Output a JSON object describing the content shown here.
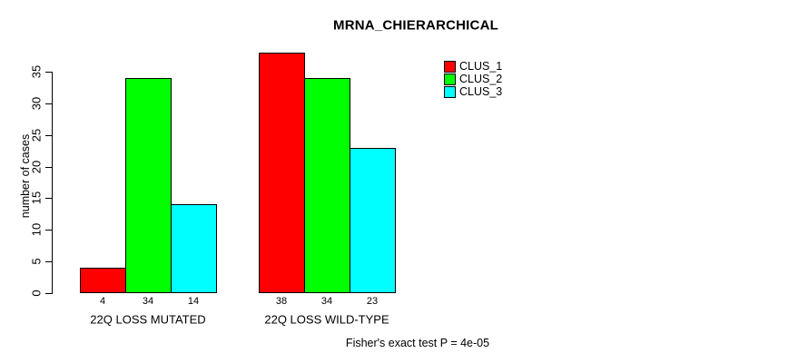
{
  "chart_data": {
    "type": "bar",
    "title": "MRNA_CHIERARCHICAL",
    "ylabel": "number of cases",
    "xlabel": "",
    "categories": [
      "22Q LOSS MUTATED",
      "22Q LOSS WILD-TYPE"
    ],
    "series": [
      {
        "name": "CLUS_1",
        "color": "#ff0000",
        "values": [
          4,
          38
        ]
      },
      {
        "name": "CLUS_2",
        "color": "#00ff00",
        "values": [
          34,
          34
        ]
      },
      {
        "name": "CLUS_3",
        "color": "#00ffff",
        "values": [
          14,
          23
        ]
      }
    ],
    "bar_value_labels": [
      [
        4,
        34,
        14
      ],
      [
        38,
        34,
        23
      ]
    ],
    "show_bar_value_labels": true,
    "yticks": [
      0,
      5,
      10,
      15,
      20,
      25,
      30,
      35
    ],
    "ylim": [
      0,
      35
    ],
    "grid": false,
    "legend_position": "top-right",
    "legend_entries": [
      "CLUS_1",
      "CLUS_2",
      "CLUS_3"
    ],
    "annotation": "Fisher's exact test P = 4e-05",
    "bar_border_color": "#000000",
    "axis_color": "#000000",
    "text_color": "#000000",
    "background_color": "#ffffff"
  }
}
